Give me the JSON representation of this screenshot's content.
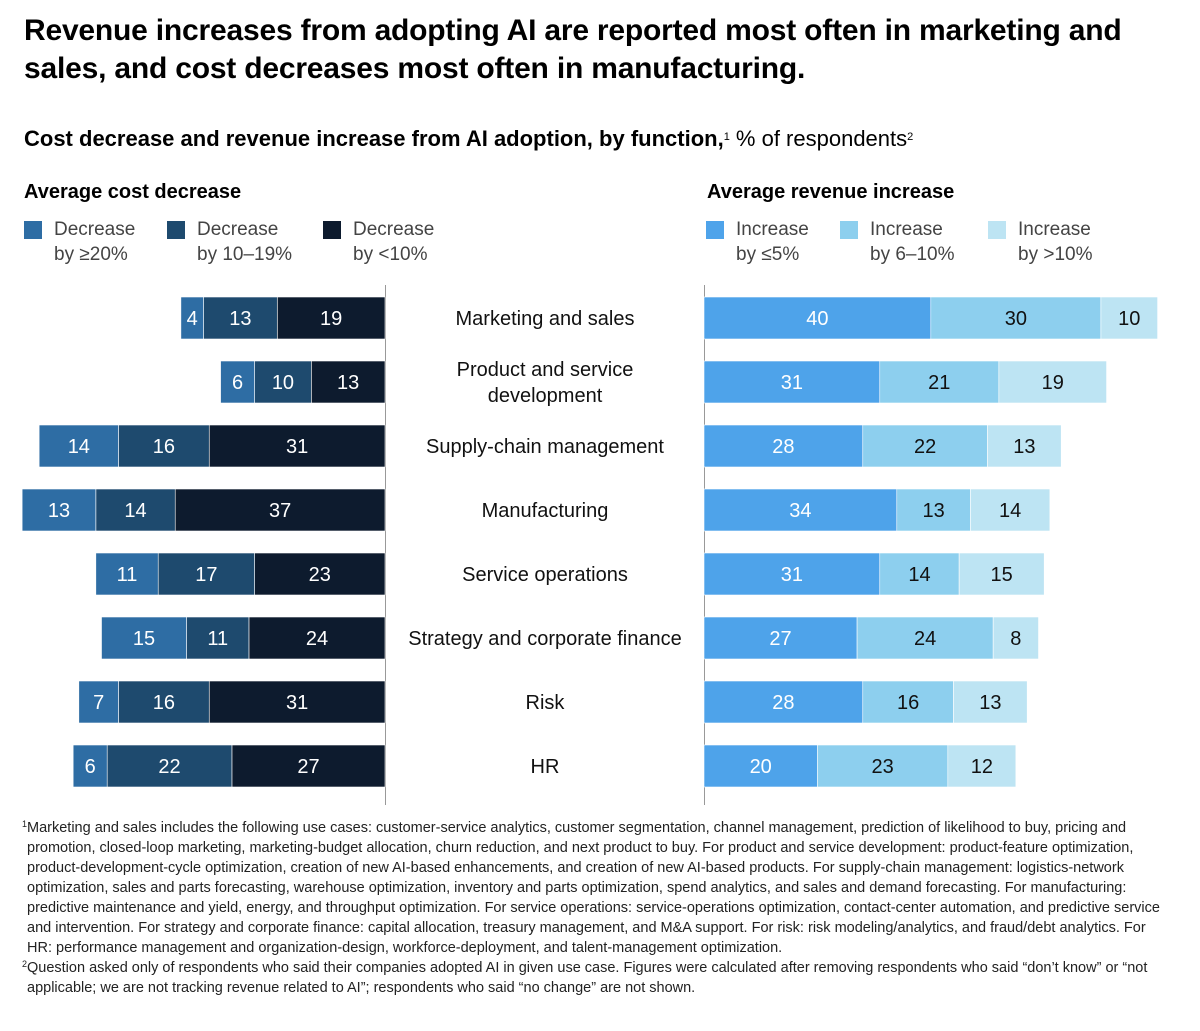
{
  "title": "Revenue increases from adopting AI are reported most often in marketing and sales, and cost decreases most often in manufacturing.",
  "subtitle": {
    "bold": "Cost decrease and revenue increase from AI adoption, by function,",
    "sup1": "1",
    "regular": " % of respondents",
    "sup2": "2"
  },
  "colors": {
    "cost": [
      "#2e6da4",
      "#1e4a6e",
      "#0d1b2e"
    ],
    "revenue": [
      "#4ea3ea",
      "#8dcfee",
      "#bde4f3"
    ]
  },
  "chart_data": {
    "type": "bar",
    "orientation": "horizontal-stacked-diverging",
    "categories": [
      "Marketing and sales",
      "Product and service development",
      "Supply-chain management",
      "Manufacturing",
      "Service operations",
      "Strategy and corporate finance",
      "Risk",
      "HR"
    ],
    "cost_title": "Average cost decrease",
    "revenue_title": "Average revenue increase",
    "cost_series": [
      {
        "name": "Decrease by ≥20%",
        "legend_line1": "Decrease",
        "legend_line2": "by ≥20%",
        "values": [
          4,
          6,
          14,
          13,
          11,
          15,
          7,
          6
        ]
      },
      {
        "name": "Decrease by 10–19%",
        "legend_line1": "Decrease",
        "legend_line2": "by 10–19%",
        "values": [
          13,
          10,
          16,
          14,
          17,
          11,
          16,
          22
        ]
      },
      {
        "name": "Decrease by <10%",
        "legend_line1": "Decrease",
        "legend_line2": "by <10%",
        "values": [
          19,
          13,
          31,
          37,
          23,
          24,
          31,
          27
        ]
      }
    ],
    "revenue_series": [
      {
        "name": "Increase by ≤5%",
        "legend_line1": "Increase",
        "legend_line2": "by ≤5%",
        "values": [
          40,
          31,
          28,
          34,
          31,
          27,
          28,
          20
        ]
      },
      {
        "name": "Increase by 6–10%",
        "legend_line1": "Increase",
        "legend_line2": "by 6–10%",
        "values": [
          30,
          21,
          22,
          13,
          14,
          24,
          16,
          23
        ]
      },
      {
        "name": "Increase by >10%",
        "legend_line1": "Increase",
        "legend_line2": "by >10%",
        "values": [
          10,
          19,
          13,
          14,
          15,
          8,
          13,
          12
        ]
      }
    ]
  },
  "footnotes": [
    {
      "mark": "1",
      "text": "Marketing and sales includes the following use cases: customer-service analytics, customer segmentation, channel management, prediction of likelihood to buy, pricing and promotion, closed-loop marketing, marketing-budget allocation, churn reduction, and next product to buy. For product and service development: product-feature optimization, product-development-cycle optimization, creation of new AI-based enhancements, and creation of new AI-based products. For supply-chain management: logistics-network optimization, sales and parts forecasting, warehouse optimization, inventory and parts optimization, spend analytics, and sales and demand forecasting. For manufacturing: predictive maintenance and yield, energy, and throughput optimization. For service operations: service-operations optimization, contact-center automation, and predictive service and intervention. For strategy and corporate finance: capital allocation, treasury management, and M&A support. For risk: risk modeling/analytics, and fraud/debt analytics. For HR: performance management and organization-design, workforce-deployment, and talent-management optimization."
    },
    {
      "mark": "2",
      "text": "Question asked only of respondents who said their companies adopted AI in given use case. Figures were calculated after removing respondents who said “don’t know” or “not applicable; we are not tracking revenue related to AI”; respondents who said “no change” are not shown."
    }
  ]
}
